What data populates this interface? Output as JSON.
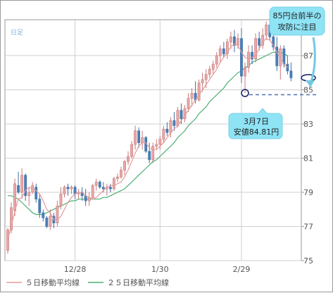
{
  "chart_data": {
    "type": "candlestick",
    "period_label": "日足",
    "y_ticks": [
      75,
      77,
      79,
      81,
      83,
      85,
      87
    ],
    "ylim": [
      75,
      89.1
    ],
    "x_tick_labels": [
      "12/28",
      "1/30",
      "2/29"
    ],
    "x_tick_index": [
      19,
      43,
      66
    ],
    "bars": [
      [
        75.6,
        76.9,
        75.4,
        76.8
      ],
      [
        76.8,
        78.4,
        76.6,
        78.1
      ],
      [
        77.9,
        79.8,
        77.6,
        79.5
      ],
      [
        79.4,
        80.2,
        78.9,
        79.0
      ],
      [
        79.0,
        80.4,
        78.6,
        80.0
      ],
      [
        80.0,
        80.1,
        78.5,
        78.8
      ],
      [
        78.8,
        79.3,
        78.2,
        79.0
      ],
      [
        79.0,
        79.6,
        78.9,
        79.4
      ],
      [
        79.3,
        79.5,
        78.4,
        78.6
      ],
      [
        78.6,
        78.9,
        77.5,
        77.8
      ],
      [
        77.8,
        78.0,
        77.3,
        77.5
      ],
      [
        77.5,
        77.6,
        76.9,
        77.0
      ],
      [
        77.0,
        78.0,
        76.8,
        77.6
      ],
      [
        77.6,
        77.8,
        76.9,
        77.2
      ],
      [
        77.2,
        78.5,
        77.0,
        78.2
      ],
      [
        78.2,
        79.3,
        78.0,
        78.9
      ],
      [
        78.9,
        79.4,
        78.7,
        79.3
      ],
      [
        79.3,
        79.5,
        78.8,
        79.2
      ],
      [
        79.2,
        79.4,
        78.9,
        79.3
      ],
      [
        79.3,
        79.4,
        78.6,
        78.9
      ],
      [
        78.9,
        79.2,
        78.6,
        79.0
      ],
      [
        79.0,
        79.3,
        78.5,
        78.8
      ],
      [
        78.8,
        79.2,
        78.2,
        78.5
      ],
      [
        78.5,
        79.0,
        78.2,
        78.7
      ],
      [
        78.7,
        79.5,
        78.6,
        79.4
      ],
      [
        79.4,
        79.8,
        79.1,
        79.6
      ],
      [
        79.6,
        79.7,
        79.2,
        79.3
      ],
      [
        79.3,
        79.6,
        79.0,
        79.2
      ],
      [
        79.2,
        79.5,
        78.8,
        79.3
      ],
      [
        79.3,
        79.5,
        79.0,
        79.2
      ],
      [
        79.2,
        79.9,
        79.1,
        79.8
      ],
      [
        79.8,
        80.1,
        79.6,
        79.9
      ],
      [
        79.9,
        80.5,
        79.8,
        80.3
      ],
      [
        80.3,
        80.9,
        80.0,
        80.8
      ],
      [
        80.8,
        81.4,
        80.6,
        81.1
      ],
      [
        81.1,
        82.0,
        81.0,
        81.8
      ],
      [
        81.8,
        82.9,
        81.5,
        82.6
      ],
      [
        82.6,
        82.8,
        81.6,
        81.9
      ],
      [
        81.9,
        82.6,
        81.5,
        82.2
      ],
      [
        82.2,
        82.3,
        81.3,
        81.4
      ],
      [
        81.4,
        81.9,
        80.7,
        80.9
      ],
      [
        80.9,
        81.9,
        80.7,
        81.7
      ],
      [
        81.7,
        82.1,
        81.5,
        81.8
      ],
      [
        81.8,
        82.3,
        81.5,
        82.1
      ],
      [
        82.1,
        82.9,
        81.9,
        82.7
      ],
      [
        82.7,
        83.1,
        82.3,
        82.5
      ],
      [
        82.5,
        83.4,
        82.2,
        83.2
      ],
      [
        83.2,
        83.7,
        82.6,
        82.9
      ],
      [
        82.9,
        84.0,
        82.8,
        83.8
      ],
      [
        83.8,
        84.2,
        83.0,
        83.3
      ],
      [
        83.3,
        84.1,
        83.1,
        83.9
      ],
      [
        83.9,
        84.8,
        83.7,
        84.5
      ],
      [
        84.5,
        85.1,
        84.0,
        84.8
      ],
      [
        84.8,
        85.5,
        84.2,
        84.4
      ],
      [
        84.4,
        85.6,
        84.3,
        85.4
      ],
      [
        85.4,
        86.0,
        84.9,
        85.6
      ],
      [
        85.6,
        86.2,
        85.1,
        85.9
      ],
      [
        85.9,
        86.4,
        85.7,
        86.2
      ],
      [
        86.2,
        86.7,
        85.9,
        86.5
      ],
      [
        86.5,
        87.2,
        86.3,
        87.0
      ],
      [
        87.0,
        87.6,
        86.6,
        87.4
      ],
      [
        87.4,
        87.8,
        86.9,
        87.1
      ],
      [
        87.1,
        88.0,
        86.8,
        87.8
      ],
      [
        87.8,
        88.4,
        87.4,
        88.1
      ],
      [
        88.1,
        88.5,
        87.2,
        87.6
      ],
      [
        87.6,
        88.3,
        87.4,
        88.0
      ],
      [
        88.0,
        88.6,
        85.4,
        85.8
      ],
      [
        85.8,
        86.6,
        84.81,
        86.3
      ],
      [
        86.3,
        87.6,
        86.0,
        87.2
      ],
      [
        87.2,
        87.6,
        86.5,
        86.8
      ],
      [
        86.8,
        88.3,
        86.6,
        88.0
      ],
      [
        88.0,
        88.4,
        87.3,
        87.6
      ],
      [
        87.6,
        88.6,
        87.4,
        88.2
      ],
      [
        88.2,
        89.0,
        87.9,
        88.8
      ],
      [
        88.8,
        89.1,
        87.9,
        88.1
      ],
      [
        88.1,
        88.4,
        87.3,
        87.5
      ],
      [
        87.5,
        88.1,
        86.1,
        86.4
      ],
      [
        86.4,
        87.6,
        85.6,
        87.4
      ],
      [
        87.4,
        87.6,
        86.3,
        86.5
      ],
      [
        86.5,
        87.0,
        85.9,
        86.1
      ],
      [
        86.1,
        86.6,
        85.5,
        85.7
      ]
    ],
    "ma5": [
      76.2,
      77.0,
      77.9,
      78.6,
      78.7,
      79.1,
      79.3,
      79.2,
      79.1,
      78.9,
      78.5,
      78.0,
      77.8,
      77.4,
      77.4,
      77.6,
      78.0,
      78.4,
      78.7,
      78.9,
      79.0,
      79.0,
      78.8,
      78.7,
      78.6,
      78.7,
      78.9,
      79.1,
      79.3,
      79.4,
      79.4,
      79.5,
      79.6,
      79.9,
      80.3,
      80.8,
      81.3,
      81.7,
      81.9,
      81.9,
      81.6,
      81.5,
      81.5,
      81.7,
      81.9,
      82.2,
      82.5,
      82.7,
      82.9,
      83.2,
      83.5,
      83.8,
      84.1,
      84.4,
      84.7,
      85.0,
      85.3,
      85.6,
      85.9,
      86.2,
      86.6,
      86.9,
      87.2,
      87.5,
      87.7,
      87.6,
      87.2,
      86.9,
      86.8,
      86.9,
      87.0,
      87.4,
      87.8,
      88.0,
      87.9,
      87.6,
      87.2,
      86.9,
      86.5,
      86.3
    ],
    "ma25": [
      78.8,
      78.8,
      78.7,
      78.6,
      78.4,
      78.2,
      78.0,
      77.8,
      77.7,
      77.7,
      77.7,
      77.8,
      77.9,
      78.0,
      78.1,
      78.2,
      78.3,
      78.4,
      78.5,
      78.5,
      78.6,
      78.6,
      78.6,
      78.6,
      78.6,
      78.6,
      78.6,
      78.7,
      78.7,
      78.8,
      78.9,
      79.0,
      79.1,
      79.2,
      79.4,
      79.6,
      79.8,
      80.0,
      80.2,
      80.4,
      80.6,
      80.8,
      80.9,
      81.1,
      81.3,
      81.5,
      81.7,
      81.9,
      82.2,
      82.4,
      82.6,
      82.9,
      83.1,
      83.3,
      83.6,
      83.8,
      84.0,
      84.3,
      84.5,
      84.7,
      84.9,
      85.1,
      85.4,
      85.6,
      85.8,
      86.0,
      86.1,
      86.3,
      86.4,
      86.6,
      86.7,
      86.8,
      86.9,
      87.0,
      87.1,
      87.2,
      87.2,
      87.2,
      87.1,
      87.0
    ],
    "support_level": 85,
    "low_marker": {
      "index": 67,
      "value": 84.81
    },
    "legend": [
      {
        "label": "５日移動平均線",
        "color": "#e89a9a"
      },
      {
        "label": "２５日移動平均線",
        "color": "#4caf74"
      }
    ],
    "callouts": {
      "top_line1": "85円台前半の",
      "top_line2": "攻防に注目",
      "low_line1": "3月7日",
      "low_line2": "安値84.81円"
    },
    "colors": {
      "up": "#e9a8a8",
      "up_stroke": "#c77a7a",
      "down": "#4a7fb8",
      "down_stroke": "#3f6fa3",
      "grid": "#cfcfcf",
      "callout_fill": "#8ee3f5",
      "callout_stroke": "#79d0e6",
      "marker": "#1f2a6b",
      "dash": "#5a7ab5"
    }
  }
}
